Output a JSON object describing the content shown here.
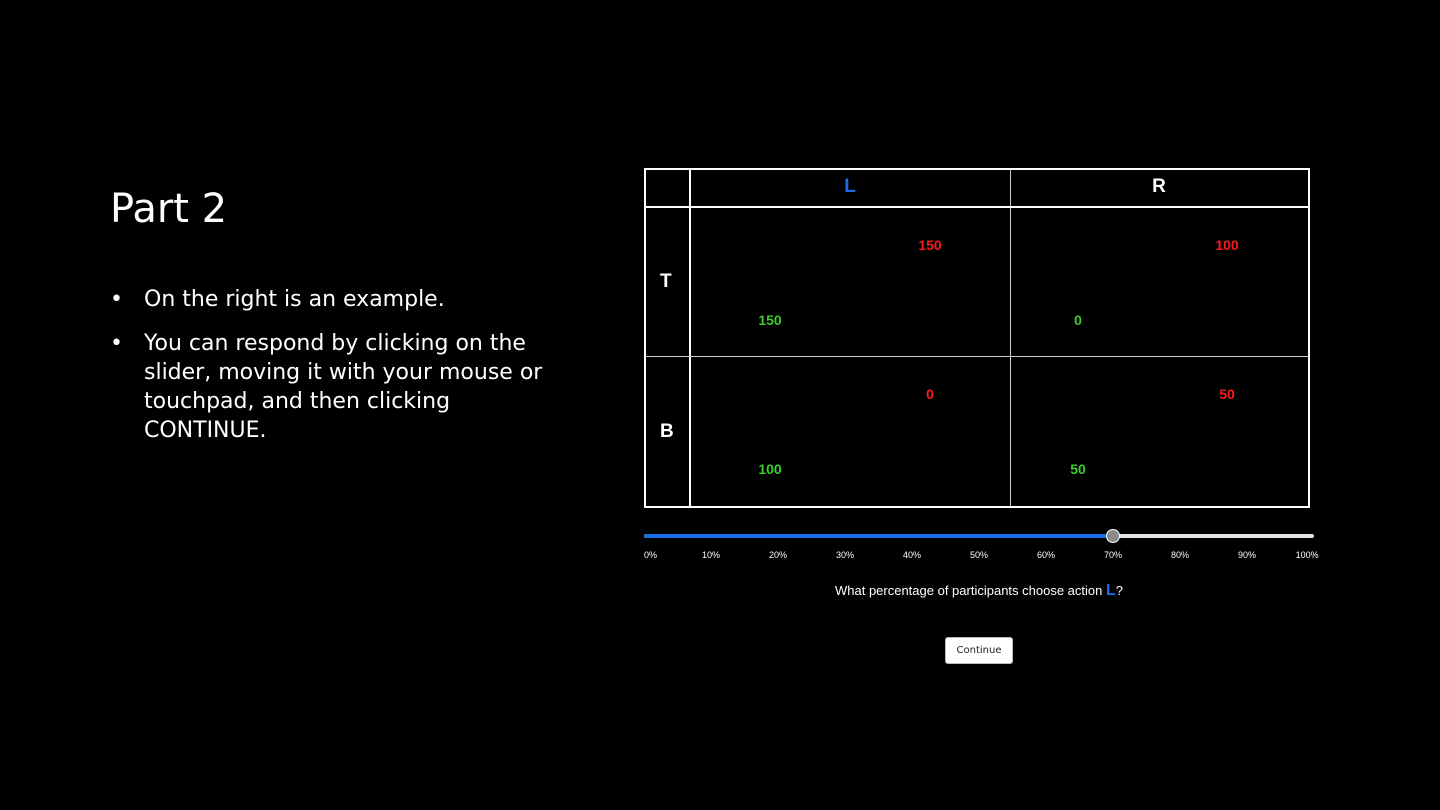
{
  "slide": {
    "title": "Part 2",
    "bullet_marker": "•",
    "bullets": [
      "On the right is an example.",
      "You can respond by clicking on the slider, moving it with your mouse or touchpad, and then clicking CONTINUE."
    ]
  },
  "matrix": {
    "columns": [
      "L",
      "R"
    ],
    "rows": [
      "T",
      "B"
    ],
    "highlight_column": "L",
    "colors": {
      "column_payoff": "#ff1a1a",
      "row_payoff": "#3ccd2a",
      "highlight": "#1a6ee8"
    },
    "cells": {
      "T_L": {
        "column_payoff": "150",
        "row_payoff": "150"
      },
      "T_R": {
        "column_payoff": "100",
        "row_payoff": "0"
      },
      "B_L": {
        "column_payoff": "0",
        "row_payoff": "100"
      },
      "B_R": {
        "column_payoff": "50",
        "row_payoff": "50"
      }
    }
  },
  "slider": {
    "value_fraction": 0.7,
    "ticks": [
      "0%",
      "10%",
      "20%",
      "30%",
      "40%",
      "50%",
      "60%",
      "70%",
      "80%",
      "90%",
      "100%"
    ],
    "question_prefix": "What percentage of participants choose action ",
    "question_action": "L",
    "question_suffix": "?"
  },
  "continue_label": "Continue"
}
